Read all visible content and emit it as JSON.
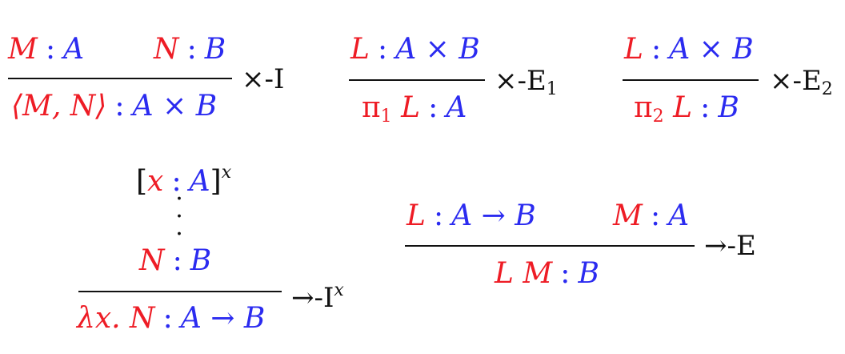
{
  "rules": {
    "pair_intro": {
      "premise_left": {
        "term": "M",
        "type": "A"
      },
      "premise_right": {
        "term": "N",
        "type": "B"
      },
      "conclusion": {
        "term": "⟨M, N⟩",
        "type": "A × B"
      },
      "label": "×-I"
    },
    "proj1_elim": {
      "premise": {
        "term": "L",
        "type": "A × B"
      },
      "conclusion": {
        "term_op": "π",
        "term_sub": "1",
        "term_arg": "L",
        "type": "A"
      },
      "label_main": "×-E",
      "label_sub": "1"
    },
    "proj2_elim": {
      "premise": {
        "term": "L",
        "type": "A × B"
      },
      "conclusion": {
        "term_op": "π",
        "term_sub": "2",
        "term_arg": "L",
        "type": "B"
      },
      "label_main": "×-E",
      "label_sub": "2"
    },
    "lambda_intro": {
      "hypothesis": {
        "open": "[",
        "term": "x",
        "type": "A",
        "close": "]",
        "sup": "x"
      },
      "vdots": "⋮",
      "premise": {
        "term": "N",
        "type": "B"
      },
      "conclusion": {
        "term": "λx. N",
        "type": "A → B"
      },
      "label_main": "→-I",
      "label_sup": "x"
    },
    "app_elim": {
      "premise_left": {
        "term": "L",
        "type": "A → B"
      },
      "premise_right": {
        "term": "M",
        "type": "A"
      },
      "conclusion": {
        "term": "L M",
        "type": "B"
      },
      "label": "→-E"
    }
  },
  "colors": {
    "term": "#ee1c25",
    "type": "#2b2bf0",
    "rule_line": "#111111"
  }
}
